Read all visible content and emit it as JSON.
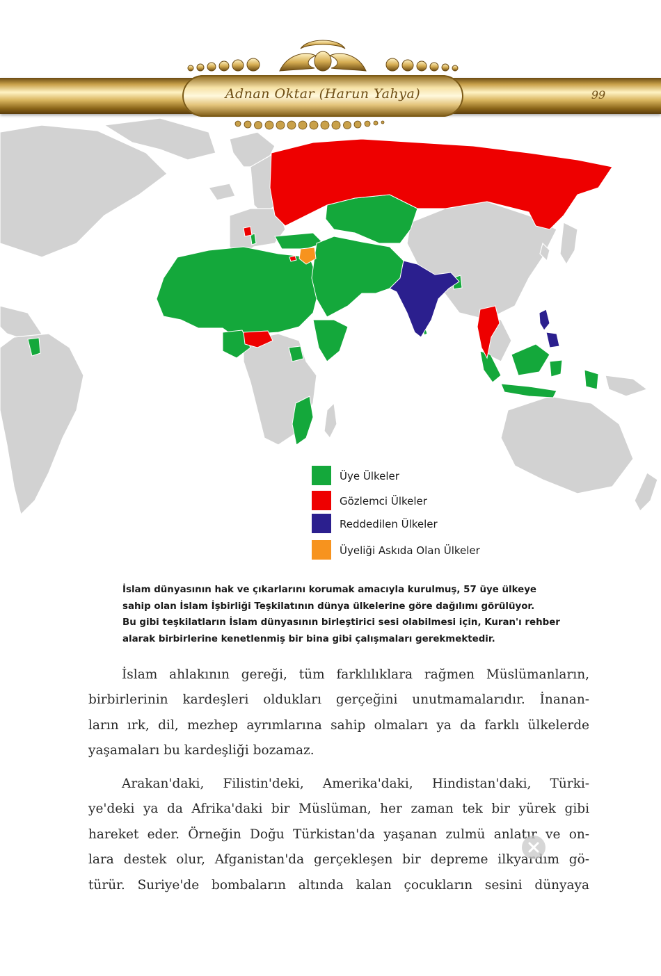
{
  "header": {
    "title": "Adnan Oktar (Harun Yahya)",
    "page_number": "99",
    "colors": {
      "gold_dark": "#6b4a12",
      "gold_light": "#fff3c4",
      "text": "#6e4d14"
    }
  },
  "map": {
    "colors": {
      "ocean": "#ffffff",
      "land": "#d2d2d2",
      "border": "#ffffff",
      "member": "#14a83b",
      "observer": "#ee0000",
      "rejected": "#2b1f8e",
      "suspended": "#f7931e"
    }
  },
  "legend": {
    "items": [
      {
        "label": "Üye Ülkeler",
        "color": "#14a83b"
      },
      {
        "label": "Gözlemci Ülkeler",
        "color": "#ee0000"
      },
      {
        "label": "Reddedilen Ülkeler",
        "color": "#2b1f8e"
      },
      {
        "label": "Üyeliği Askıda Olan Ülkeler",
        "color": "#f7931e"
      }
    ]
  },
  "caption": {
    "lines": [
      "İslam dünyasının hak ve çıkarlarını korumak amacıyla kurulmuş, 57 üye ülkeye",
      "sahip olan İslam İşbirliği Teşkilatının dünya ülkelerine göre dağılımı görülüyor.",
      "Bu gibi teşkilatların İslam dünyasının birleştirici sesi olabilmesi için, Kuran'ı rehber",
      "alarak birbirlerine kenetlenmiş bir bina gibi çalışmaları gerekmektedir."
    ]
  },
  "body": {
    "paragraph1": [
      "İslam ahlakının gereği, tüm farklılıklara rağmen Müslümanların,",
      "birbirlerinin kardeşleri oldukları gerçeğini unutmamalarıdır. İnanan-",
      "ların ırk, dil, mezhep ayrımlarına sahip olmaları ya da farklı ülkelerde",
      "yaşamaları bu kardeşliği bozamaz."
    ],
    "paragraph2": [
      "Arakan'daki, Filistin'deki, Amerika'daki, Hindistan'daki, Türki-",
      "ye'deki ya da Afrika'daki bir Müslüman, her zaman tek bir yürek gibi",
      "hareket eder. Örneğin Doğu Türkistan'da yaşanan zulmü anlatır ve on-",
      "lara destek olur, Afganistan'da gerçekleşen bir depreme ilkyardım gö-",
      "türür. Suriye'de bombaların altında kalan çocukların sesini dünyaya"
    ]
  }
}
